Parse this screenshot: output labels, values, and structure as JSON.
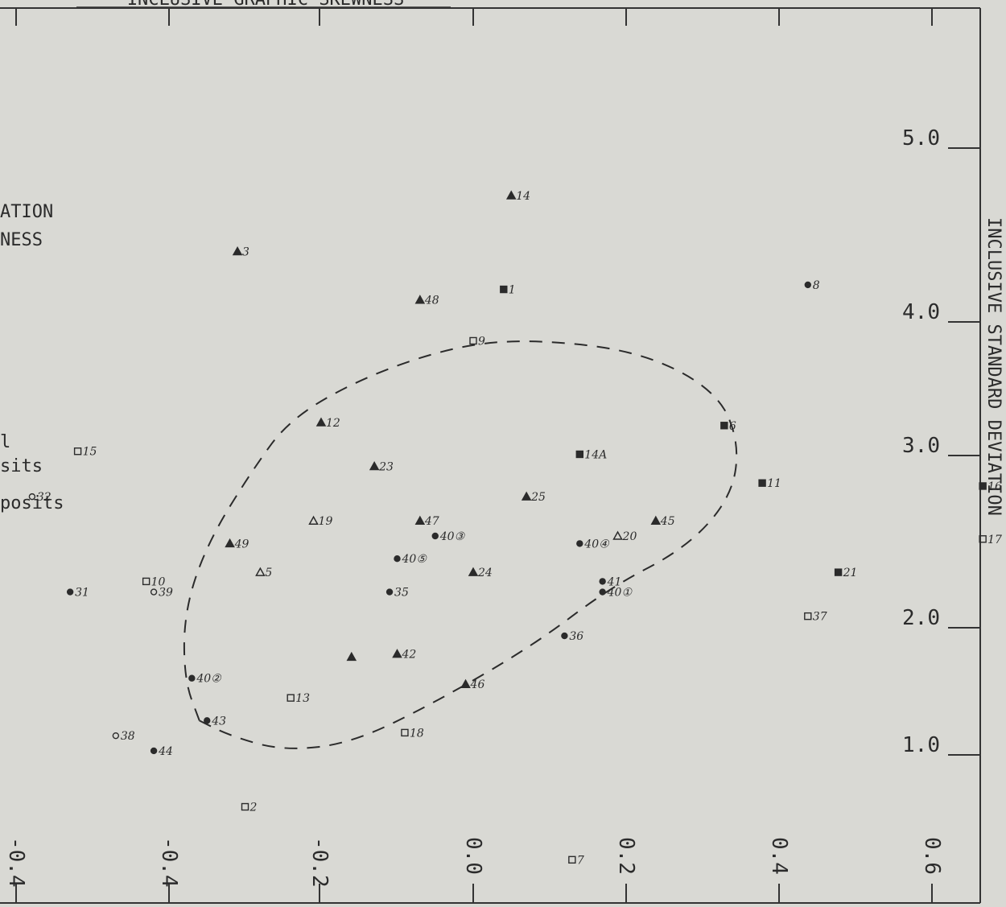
{
  "chart_data": {
    "type": "scatter",
    "title": "INCLUSIVE GRAPHIC SKEWNESS",
    "ylabel": "INCLUSIVE STANDARD DEVIATION",
    "x_ticks": [
      "-0.4",
      "-0.4",
      "-0.2",
      "0.0",
      "0.2",
      "0.4",
      "0.6"
    ],
    "y_ticks": [
      "5.0",
      "4.0",
      "3.0",
      "2.0",
      "1.0"
    ],
    "xlim": [
      -0.6,
      0.7
    ],
    "ylim": [
      0.0,
      5.5
    ],
    "legend_fragments": [
      "ATION",
      "NESS",
      "l",
      "sits",
      "posits"
    ],
    "symbols": {
      "triangle_filled": "filled triangle",
      "triangle_open": "open triangle",
      "square_filled": "filled square",
      "square_open": "open square",
      "circle_filled": "filled circle",
      "circle_open": "open circle"
    },
    "points": [
      {
        "label": "14",
        "x": 0.05,
        "y": 4.75,
        "marker": "triangle_filled"
      },
      {
        "label": "3",
        "x": -0.31,
        "y": 4.38,
        "marker": "triangle_filled"
      },
      {
        "label": "48",
        "x": -0.07,
        "y": 4.06,
        "marker": "triangle_filled"
      },
      {
        "label": "1",
        "x": 0.04,
        "y": 4.13,
        "marker": "square_filled"
      },
      {
        "label": "8",
        "x": 0.44,
        "y": 4.16,
        "marker": "circle_filled"
      },
      {
        "label": "9",
        "x": 0.0,
        "y": 3.79,
        "marker": "square_open"
      },
      {
        "label": "12",
        "x": -0.2,
        "y": 3.25,
        "marker": "triangle_filled"
      },
      {
        "label": "6",
        "x": 0.33,
        "y": 3.23,
        "marker": "square_filled"
      },
      {
        "label": "15",
        "x": -0.52,
        "y": 3.06,
        "marker": "square_open"
      },
      {
        "label": "14A",
        "x": 0.14,
        "y": 3.04,
        "marker": "square_filled"
      },
      {
        "label": "23",
        "x": -0.13,
        "y": 2.96,
        "marker": "triangle_filled"
      },
      {
        "label": "32",
        "x": -0.58,
        "y": 2.76,
        "marker": "circle_open"
      },
      {
        "label": "25",
        "x": 0.07,
        "y": 2.76,
        "marker": "triangle_filled"
      },
      {
        "label": "16",
        "x": 0.67,
        "y": 2.83,
        "marker": "square_filled"
      },
      {
        "label": "11",
        "x": 0.38,
        "y": 2.85,
        "marker": "square_filled"
      },
      {
        "label": "47",
        "x": -0.07,
        "y": 2.6,
        "marker": "triangle_filled"
      },
      {
        "label": "19",
        "x": -0.21,
        "y": 2.6,
        "marker": "triangle_open"
      },
      {
        "label": "45",
        "x": 0.24,
        "y": 2.6,
        "marker": "triangle_filled"
      },
      {
        "label": "40③",
        "x": -0.05,
        "y": 2.5,
        "marker": "circle_filled"
      },
      {
        "label": "20",
        "x": 0.19,
        "y": 2.5,
        "marker": "triangle_open"
      },
      {
        "label": "17",
        "x": 0.67,
        "y": 2.48,
        "marker": "square_open"
      },
      {
        "label": "49",
        "x": -0.32,
        "y": 2.45,
        "marker": "triangle_filled"
      },
      {
        "label": "40④",
        "x": 0.14,
        "y": 2.45,
        "marker": "circle_filled"
      },
      {
        "label": "40⑤",
        "x": -0.1,
        "y": 2.35,
        "marker": "circle_filled"
      },
      {
        "label": "5",
        "x": -0.28,
        "y": 2.26,
        "marker": "triangle_open"
      },
      {
        "label": "24",
        "x": 0.0,
        "y": 2.26,
        "marker": "triangle_filled"
      },
      {
        "label": "21",
        "x": 0.48,
        "y": 2.26,
        "marker": "square_filled"
      },
      {
        "label": "41",
        "x": 0.17,
        "y": 2.2,
        "marker": "circle_filled"
      },
      {
        "label": "10",
        "x": -0.43,
        "y": 2.2,
        "marker": "square_open"
      },
      {
        "label": "39",
        "x": -0.42,
        "y": 2.13,
        "marker": "circle_open"
      },
      {
        "label": "31",
        "x": -0.53,
        "y": 2.13,
        "marker": "circle_filled"
      },
      {
        "label": "35",
        "x": -0.11,
        "y": 2.13,
        "marker": "circle_filled"
      },
      {
        "label": "40①",
        "x": 0.17,
        "y": 2.13,
        "marker": "circle_filled"
      },
      {
        "label": "37",
        "x": 0.44,
        "y": 1.97,
        "marker": "square_open"
      },
      {
        "label": "36",
        "x": 0.12,
        "y": 1.84,
        "marker": "circle_filled"
      },
      {
        "label": "42",
        "x": -0.1,
        "y": 1.72,
        "marker": "triangle_filled"
      },
      {
        "label": "",
        "x": -0.16,
        "y": 1.7,
        "marker": "triangle_filled"
      },
      {
        "label": "40②",
        "x": -0.37,
        "y": 1.56,
        "marker": "circle_filled"
      },
      {
        "label": "46",
        "x": -0.01,
        "y": 1.52,
        "marker": "triangle_filled"
      },
      {
        "label": "13",
        "x": -0.24,
        "y": 1.43,
        "marker": "square_open"
      },
      {
        "label": "43",
        "x": -0.35,
        "y": 1.28,
        "marker": "circle_filled"
      },
      {
        "label": "38",
        "x": -0.47,
        "y": 1.18,
        "marker": "circle_open"
      },
      {
        "label": "18",
        "x": -0.09,
        "y": 1.2,
        "marker": "square_open"
      },
      {
        "label": "44",
        "x": -0.42,
        "y": 1.08,
        "marker": "circle_filled"
      },
      {
        "label": "2",
        "x": -0.3,
        "y": 0.71,
        "marker": "square_open"
      },
      {
        "label": "7",
        "x": 0.13,
        "y": 0.36,
        "marker": "square_open"
      }
    ],
    "boundary": {
      "style": "dashed",
      "path": [
        [
          -0.36,
          1.28
        ],
        [
          -0.38,
          1.55
        ],
        [
          -0.38,
          2.0
        ],
        [
          -0.35,
          2.45
        ],
        [
          -0.29,
          2.94
        ],
        [
          -0.24,
          3.28
        ],
        [
          -0.14,
          3.56
        ],
        [
          -0.02,
          3.76
        ],
        [
          0.08,
          3.8
        ],
        [
          0.22,
          3.72
        ],
        [
          0.32,
          3.46
        ],
        [
          0.35,
          3.12
        ],
        [
          0.34,
          2.76
        ],
        [
          0.28,
          2.42
        ],
        [
          0.18,
          2.16
        ],
        [
          0.08,
          1.78
        ],
        [
          -0.05,
          1.4
        ],
        [
          -0.16,
          1.13
        ],
        [
          -0.25,
          1.08
        ],
        [
          -0.32,
          1.18
        ],
        [
          -0.36,
          1.28
        ]
      ]
    },
    "grid": false,
    "legend": "left (cropped)"
  }
}
